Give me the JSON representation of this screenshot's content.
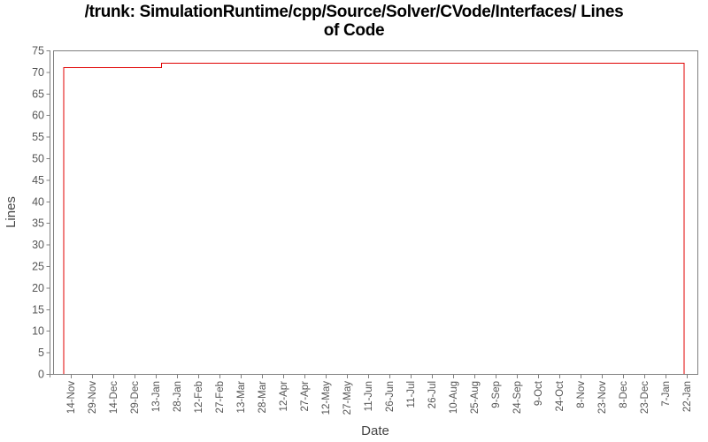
{
  "chart_data": {
    "type": "line",
    "line_style": "step",
    "title_line1": "/trunk: SimulationRuntime/cpp/Source/Solver/CVode/Interfaces/ Lines",
    "title_line2": "of Code",
    "xlabel": "Date",
    "ylabel": "Lines",
    "ylim": [
      0,
      75
    ],
    "ytick_step": 5,
    "yticks": [
      0,
      5,
      10,
      15,
      20,
      25,
      30,
      35,
      40,
      45,
      50,
      55,
      60,
      65,
      70,
      75
    ],
    "xtick_labels": [
      "14-Nov",
      "29-Nov",
      "14-Dec",
      "29-Dec",
      "13-Jan",
      "28-Jan",
      "12-Feb",
      "27-Feb",
      "13-Mar",
      "28-Mar",
      "12-Apr",
      "27-Apr",
      "12-May",
      "27-May",
      "11-Jun",
      "26-Jun",
      "11-Jul",
      "26-Jul",
      "10-Aug",
      "25-Aug",
      "9-Sep",
      "24-Sep",
      "9-Oct",
      "24-Oct",
      "8-Nov",
      "23-Nov",
      "8-Dec",
      "23-Dec",
      "7-Jan",
      "22-Jan"
    ],
    "xtick_interval_days": 15,
    "x_domain_days": [
      -12.5,
      442.5
    ],
    "grid": false,
    "legend": false,
    "series": [
      {
        "name": "Lines of Code",
        "color": "#e00000",
        "points": [
          {
            "day": -5,
            "approx_date": "9-Nov",
            "value": 0
          },
          {
            "day": -5,
            "approx_date": "9-Nov",
            "value": 71
          },
          {
            "day": 64,
            "approx_date": "17-Jan",
            "value": 71
          },
          {
            "day": 64,
            "approx_date": "17-Jan",
            "value": 72
          },
          {
            "day": 433,
            "approx_date": "20-Jan",
            "value": 72
          },
          {
            "day": 433,
            "approx_date": "20-Jan",
            "value": 0
          }
        ]
      }
    ],
    "colors": {
      "background": "#ffffff",
      "frame": "#808080",
      "tick_mark": "#808080",
      "tick_label": "#555555",
      "axis_label": "#444444",
      "title": "#000000"
    }
  }
}
